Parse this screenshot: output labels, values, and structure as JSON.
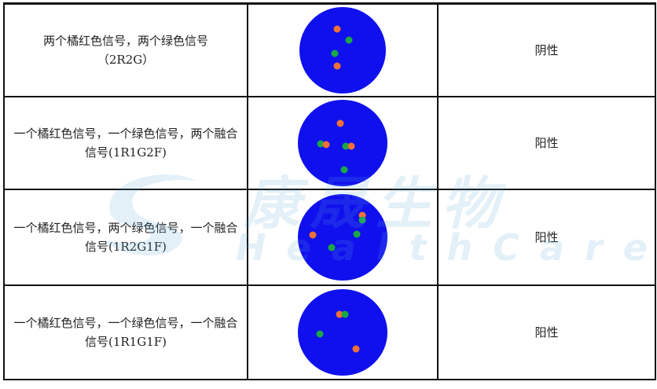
{
  "colors": {
    "field": "#1010ee",
    "orange": "#f07035",
    "green": "#1aa845"
  },
  "watermark": {
    "cn": "康晟生物",
    "en": "HealthCare"
  },
  "rows": [
    {
      "desc": "两个橘红色信号，两个绿色信号（2R2G）",
      "result": "阴性"
    },
    {
      "desc": "一个橘红色信号，一个绿色信号，两个融合信号(1R1G2F)",
      "result": "阳性"
    },
    {
      "desc": "一个橘红色信号，两个绿色信号，一个融合信号(1R2G1F)",
      "result": "阳性"
    },
    {
      "desc": "一个橘红色信号，一个绿色信号，一个融合信号(1R1G1F)",
      "result": "阳性"
    }
  ]
}
